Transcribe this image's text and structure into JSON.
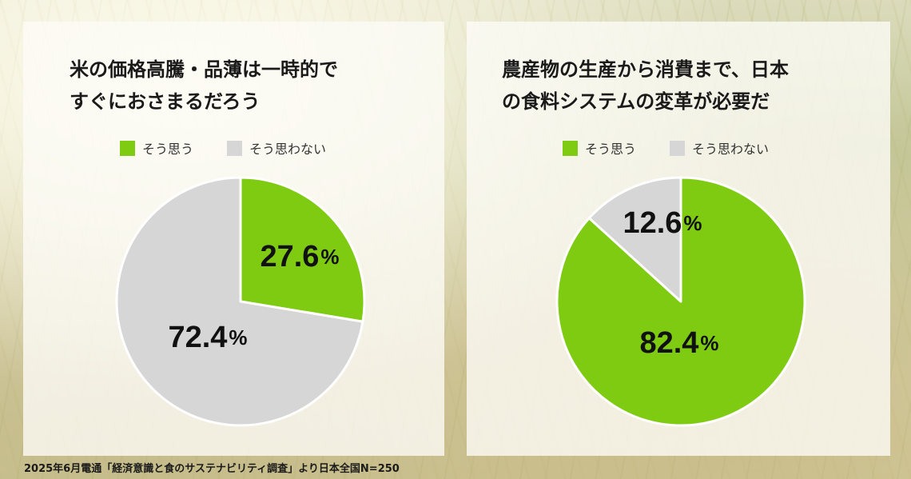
{
  "colors": {
    "yes": "#7ecb12",
    "no": "#d6d6d6",
    "slice_border": "#ffffff"
  },
  "legend": {
    "yes": "そう思う",
    "no": "そう思わない"
  },
  "percent_sign": "%",
  "footer": "2025年6月電通「経済意識と食のサステナビリティ調査」より日本全国N=250",
  "chart_data": [
    {
      "type": "pie",
      "title_lines": [
        "米の価格高騰・品薄は一時的で",
        "すぐにおさまるだろう"
      ],
      "legend": [
        "そう思う",
        "そう思わない"
      ],
      "slices": [
        {
          "label": "そう思う",
          "value": 27.6,
          "display": "27.6",
          "color": "#7ecb12"
        },
        {
          "label": "そう思わない",
          "value": 72.4,
          "display": "72.4",
          "color": "#d6d6d6"
        }
      ]
    },
    {
      "type": "pie",
      "title_lines": [
        "農産物の生産から消費まで、日本",
        "の食料システムの変革が必要だ"
      ],
      "legend": [
        "そう思う",
        "そう思わない"
      ],
      "slices": [
        {
          "label": "そう思う",
          "value": 82.4,
          "display": "82.4",
          "color": "#7ecb12"
        },
        {
          "label": "そう思わない",
          "value": 12.6,
          "display": "12.6",
          "color": "#d6d6d6"
        }
      ]
    }
  ]
}
